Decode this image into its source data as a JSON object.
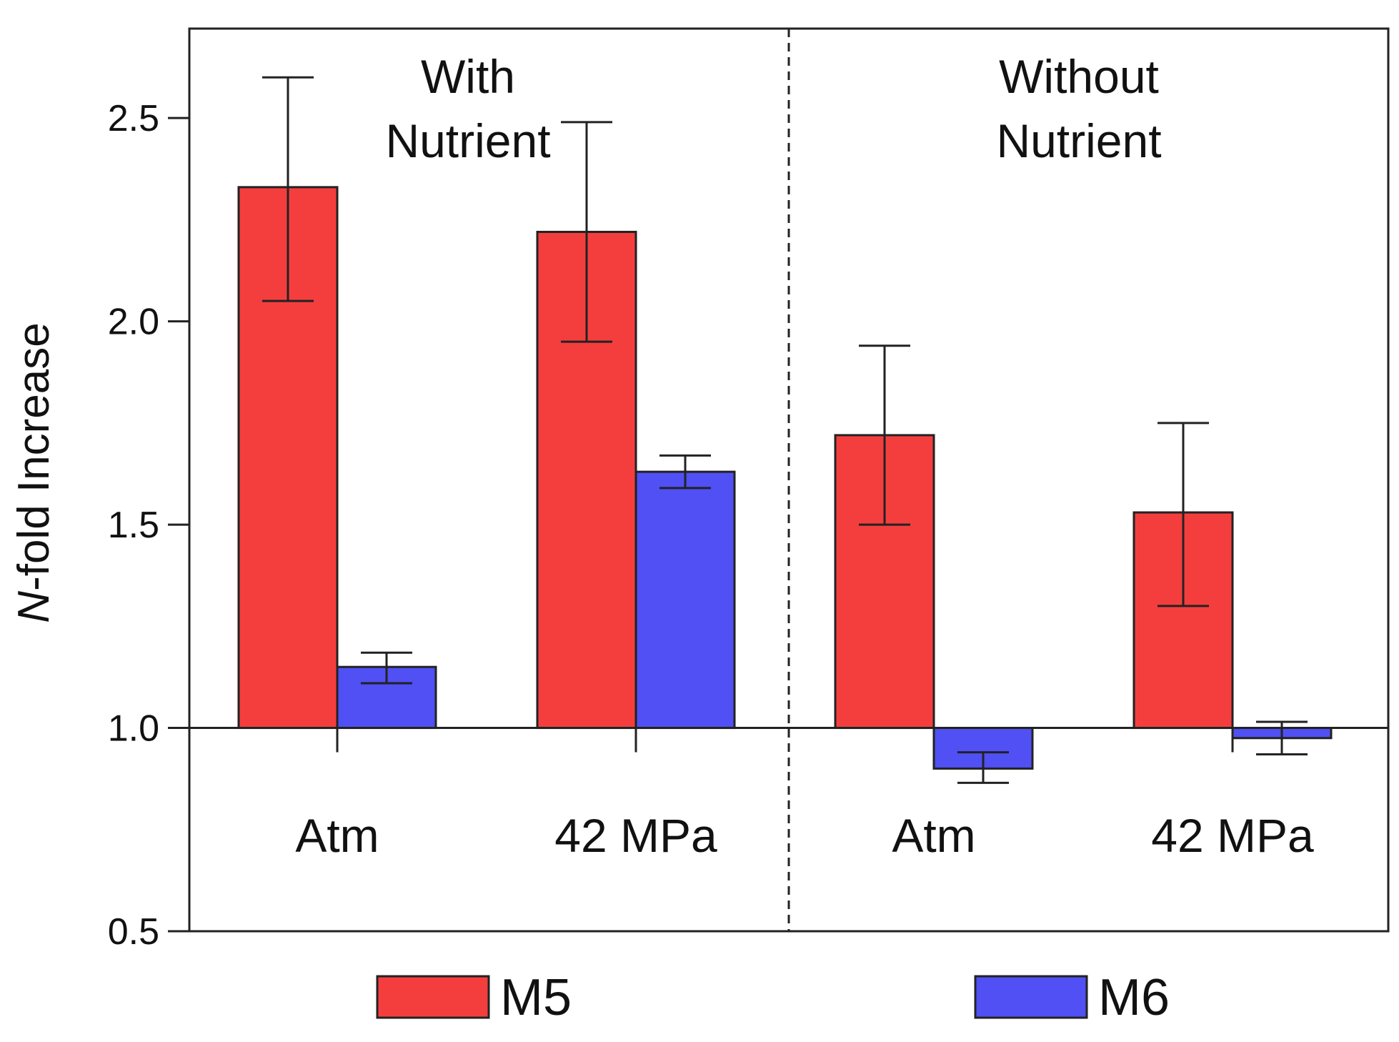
{
  "chart_data": {
    "type": "bar",
    "ylabel": {
      "italic": "N",
      "rest": "-fold Increase"
    },
    "ylim": [
      0.5,
      2.72
    ],
    "baseline": 1.0,
    "yticks": [
      0.5,
      1.0,
      1.5,
      2.0,
      2.5
    ],
    "ytick_labels": [
      "0.5",
      "1.0",
      "1.5",
      "2.0",
      "2.5"
    ],
    "panels": [
      {
        "label_lines": [
          "With",
          "Nutrient"
        ],
        "categories": [
          "Atm",
          "42 MPa"
        ]
      },
      {
        "label_lines": [
          "Without",
          "Nutrient"
        ],
        "categories": [
          "Atm",
          "42 MPa"
        ]
      }
    ],
    "categories": [
      "Atm",
      "42 MPa",
      "Atm",
      "42 MPa"
    ],
    "series": [
      {
        "name": "M5",
        "color": "#f43e3e",
        "values": [
          2.33,
          2.22,
          1.72,
          1.53
        ],
        "err_low": [
          2.05,
          1.95,
          1.5,
          1.3
        ],
        "err_high": [
          2.6,
          2.49,
          1.94,
          1.75
        ]
      },
      {
        "name": "M6",
        "color": "#5050f5",
        "values": [
          1.15,
          1.63,
          0.9,
          0.975
        ],
        "err_low": [
          1.11,
          1.59,
          0.865,
          0.935
        ],
        "err_high": [
          1.185,
          1.67,
          0.94,
          1.015
        ]
      }
    ],
    "legend_position": "bottom",
    "grid": false
  }
}
